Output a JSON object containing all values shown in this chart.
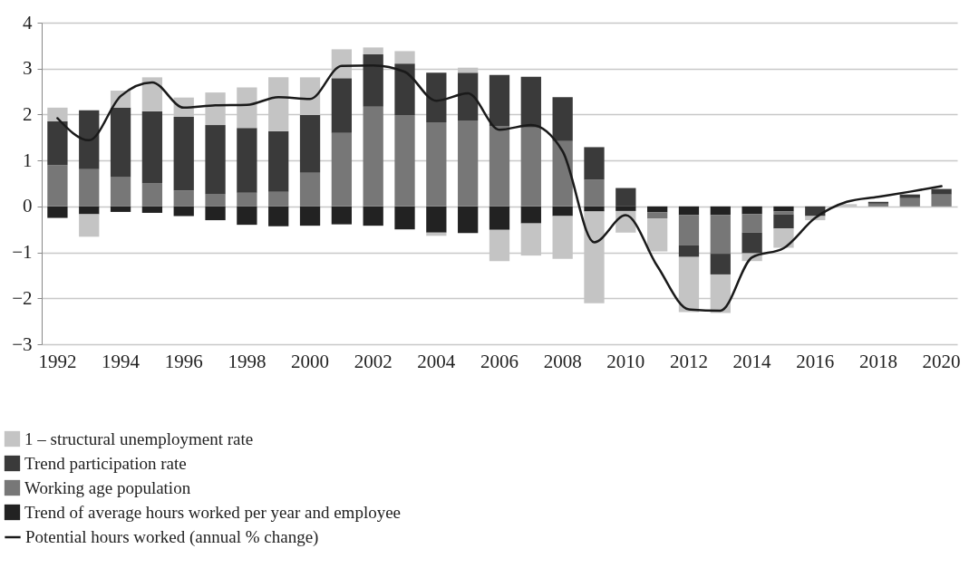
{
  "chart_data": {
    "type": "bar",
    "stacked": true,
    "categories": [
      "1992",
      null,
      "1994",
      null,
      "1996",
      null,
      "1998",
      null,
      "2000",
      null,
      "2002",
      null,
      "2004",
      null,
      "2006",
      null,
      "2008",
      null,
      "2010",
      null,
      "2012",
      null,
      "2014",
      null,
      "2016",
      null,
      "2018",
      null,
      "2020"
    ],
    "series": [
      {
        "name": "Trend of average hours worked per year and employee",
        "color": "#222222",
        "values": [
          -0.25,
          -0.17,
          -0.12,
          -0.14,
          -0.21,
          -0.3,
          -0.4,
          -0.43,
          -0.42,
          -0.39,
          -0.42,
          -0.5,
          -0.57,
          -0.58,
          -0.51,
          -0.37,
          -0.21,
          -0.11,
          -0.1,
          -0.13,
          -0.19,
          -0.19,
          -0.17,
          -0.11,
          -0.02,
          0,
          0,
          0,
          0
        ]
      },
      {
        "name": "Working age population",
        "color": "#777777",
        "values": [
          0.9,
          0.81,
          0.64,
          0.5,
          0.34,
          0.27,
          0.3,
          0.32,
          0.73,
          1.6,
          2.17,
          1.99,
          1.83,
          1.87,
          1.75,
          1.72,
          1.42,
          0.58,
          0,
          -0.13,
          -0.66,
          -0.84,
          -0.4,
          -0.06,
          0,
          0,
          0.06,
          0.18,
          0.26
        ]
      },
      {
        "name": "Trend participation rate",
        "color": "#3a3a3a",
        "values": [
          0.95,
          1.28,
          1.51,
          1.57,
          1.61,
          1.5,
          1.41,
          1.32,
          1.26,
          1.19,
          1.14,
          1.12,
          1.08,
          1.04,
          1.11,
          1.1,
          0.96,
          0.71,
          0.4,
          0,
          -0.25,
          -0.45,
          -0.45,
          -0.31,
          -0.19,
          0,
          0.04,
          0.08,
          0.12
        ]
      },
      {
        "name": "1 – structural unemployment rate",
        "color": "#c4c4c4",
        "values": [
          0.3,
          -0.49,
          0.37,
          0.74,
          0.42,
          0.71,
          0.88,
          1.17,
          0.82,
          0.63,
          0.15,
          0.27,
          -0.07,
          0.11,
          -0.68,
          -0.7,
          -0.93,
          -2.0,
          -0.47,
          -0.72,
          -1.2,
          -0.84,
          -0.17,
          -0.42,
          -0.09,
          0.05,
          null,
          0,
          0
        ]
      },
      {
        "name": "Potential hours worked (annual % change)",
        "type": "line",
        "color": "#1a1a1a",
        "values": [
          1.92,
          1.44,
          2.4,
          2.7,
          2.15,
          2.2,
          2.21,
          2.38,
          2.34,
          3.06,
          3.07,
          2.93,
          2.3,
          2.46,
          1.67,
          1.77,
          1.2,
          -0.78,
          -0.19,
          -1.3,
          -2.24,
          -2.27,
          -1.11,
          -0.91,
          -0.25,
          0.1,
          0.21,
          0.32,
          0.44
        ]
      }
    ],
    "ylim": [
      -3,
      4
    ],
    "yticks": [
      -3,
      -2,
      -1,
      0,
      1,
      2,
      3,
      4
    ],
    "grid": "y",
    "legend": "bottom left"
  }
}
